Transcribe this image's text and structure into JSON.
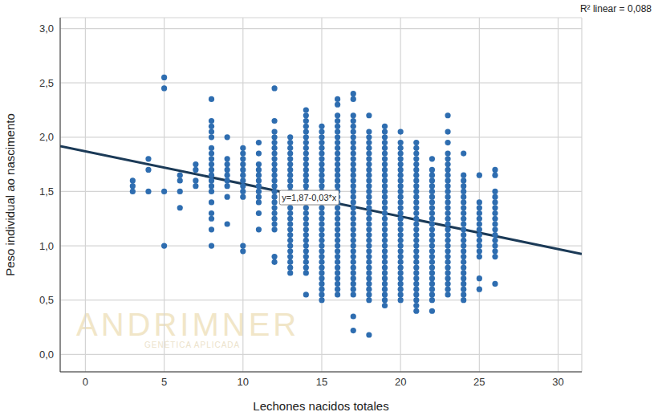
{
  "chart_data": {
    "type": "scatter",
    "x_label": "Lechones nacidos totales",
    "y_label": "Peso individual ao nascimento",
    "annotation": "R² linear = 0,088",
    "watermark": [
      "ANDRIMNER",
      "GENÉTICA APLICADA"
    ],
    "trendline": {
      "intercept": 1.87,
      "slope": -0.03,
      "label": "y=1,87-0,03*x",
      "color": "#1b3a57"
    },
    "color": "#2e6db0",
    "grid": true,
    "marker": "circle",
    "xlim": [
      -1.6,
      31.5
    ],
    "xticks": [
      0,
      5,
      10,
      15,
      20,
      25,
      30
    ],
    "ylim": [
      -0.16,
      3.1
    ],
    "yticks": [
      {
        "value": 0,
        "label": "0,0"
      },
      {
        "value": 0.5,
        "label": "0,5"
      },
      {
        "value": 1,
        "label": "1,0"
      },
      {
        "value": 1.5,
        "label": "1,5"
      },
      {
        "value": 2,
        "label": "2,0"
      },
      {
        "value": 2.5,
        "label": "2,5"
      },
      {
        "value": 3,
        "label": "3,0"
      }
    ],
    "x": [
      3,
      4,
      5,
      6,
      7,
      8,
      9,
      10,
      11,
      12,
      13,
      14,
      15,
      16,
      17,
      18,
      19,
      20,
      21,
      22,
      23,
      24,
      25,
      26
    ],
    "values": [
      [
        1.6,
        1.55,
        1.5
      ],
      [
        1.8,
        1.7,
        1.5
      ],
      [
        2.55,
        2.45,
        1.5,
        1.0
      ],
      [
        1.65,
        1.6,
        1.5,
        1.35
      ],
      [
        1.75,
        1.7,
        1.6,
        1.55
      ],
      [
        2.35,
        2.15,
        2.1,
        2.05,
        2.0,
        1.9,
        1.85,
        1.8,
        1.75,
        1.7,
        1.65,
        1.6,
        1.55,
        1.5,
        1.4,
        1.3,
        1.25,
        1.15,
        1.0
      ],
      [
        2.0,
        1.8,
        1.75,
        1.7,
        1.65,
        1.6,
        1.55,
        1.45,
        1.2
      ],
      [
        1.9,
        1.85,
        1.8,
        1.75,
        1.7,
        1.65,
        1.6,
        1.55,
        1.5,
        1.45,
        1.0,
        0.95
      ],
      [
        1.95,
        1.85,
        1.75,
        1.7,
        1.65,
        1.6,
        1.55,
        1.5,
        1.45,
        1.4,
        1.3,
        1.15
      ],
      [
        2.45,
        2.15,
        2.05,
        2.0,
        1.95,
        1.9,
        1.85,
        1.8,
        1.75,
        1.7,
        1.65,
        1.6,
        1.55,
        1.5,
        1.45,
        1.4,
        1.35,
        1.3,
        1.25,
        1.2,
        1.15,
        0.9,
        0.85
      ],
      [
        2.0,
        1.95,
        1.9,
        1.85,
        1.8,
        1.75,
        1.7,
        1.65,
        1.6,
        1.55,
        1.5,
        1.45,
        1.4,
        1.35,
        1.3,
        1.25,
        1.2,
        1.15,
        1.1,
        1.05,
        1.0,
        0.95,
        0.9,
        0.85,
        0.8,
        0.75
      ],
      [
        2.25,
        2.2,
        2.15,
        2.1,
        2.05,
        2.0,
        1.95,
        1.9,
        1.85,
        1.8,
        1.75,
        1.7,
        1.65,
        1.6,
        1.55,
        1.5,
        1.45,
        1.4,
        1.35,
        1.3,
        1.25,
        1.2,
        1.15,
        1.1,
        1.05,
        1.0,
        0.95,
        0.9,
        0.85,
        0.8,
        0.75,
        0.55
      ],
      [
        2.1,
        2.05,
        2.0,
        1.95,
        1.9,
        1.85,
        1.8,
        1.75,
        1.7,
        1.65,
        1.6,
        1.55,
        1.5,
        1.45,
        1.4,
        1.35,
        1.3,
        1.25,
        1.2,
        1.15,
        1.1,
        1.05,
        1.0,
        0.95,
        0.9,
        0.85,
        0.8,
        0.75,
        0.7,
        0.65,
        0.6,
        0.55,
        0.5
      ],
      [
        2.35,
        2.3,
        2.2,
        2.15,
        2.1,
        2.05,
        2.0,
        1.95,
        1.9,
        1.85,
        1.8,
        1.75,
        1.7,
        1.65,
        1.6,
        1.55,
        1.5,
        1.45,
        1.4,
        1.35,
        1.3,
        1.25,
        1.2,
        1.15,
        1.1,
        1.05,
        1.0,
        0.95,
        0.9,
        0.85,
        0.8,
        0.75,
        0.7,
        0.65,
        0.6,
        0.55
      ],
      [
        2.4,
        2.35,
        2.2,
        2.15,
        2.1,
        2.05,
        2.0,
        1.95,
        1.9,
        1.85,
        1.8,
        1.75,
        1.7,
        1.65,
        1.6,
        1.55,
        1.5,
        1.45,
        1.4,
        1.35,
        1.3,
        1.25,
        1.2,
        1.15,
        1.1,
        1.05,
        1.0,
        0.95,
        0.9,
        0.85,
        0.8,
        0.75,
        0.7,
        0.65,
        0.6,
        0.55,
        0.35,
        0.22
      ],
      [
        2.2,
        2.05,
        2.0,
        1.95,
        1.9,
        1.85,
        1.8,
        1.75,
        1.7,
        1.65,
        1.6,
        1.55,
        1.5,
        1.45,
        1.4,
        1.35,
        1.3,
        1.25,
        1.2,
        1.15,
        1.1,
        1.05,
        1.0,
        0.95,
        0.9,
        0.85,
        0.8,
        0.75,
        0.7,
        0.65,
        0.6,
        0.55,
        0.5,
        0.18
      ],
      [
        2.1,
        2.05,
        2.0,
        1.95,
        1.9,
        1.85,
        1.8,
        1.75,
        1.7,
        1.65,
        1.6,
        1.55,
        1.5,
        1.45,
        1.4,
        1.35,
        1.3,
        1.25,
        1.2,
        1.15,
        1.1,
        1.05,
        1.0,
        0.95,
        0.9,
        0.85,
        0.8,
        0.75,
        0.7,
        0.65,
        0.6,
        0.55,
        0.5,
        0.45
      ],
      [
        2.05,
        1.95,
        1.9,
        1.85,
        1.8,
        1.75,
        1.7,
        1.65,
        1.6,
        1.55,
        1.5,
        1.45,
        1.4,
        1.35,
        1.3,
        1.25,
        1.2,
        1.15,
        1.1,
        1.05,
        1.0,
        0.95,
        0.9,
        0.85,
        0.8,
        0.75,
        0.7,
        0.65,
        0.6,
        0.55,
        0.5
      ],
      [
        1.95,
        1.9,
        1.85,
        1.8,
        1.75,
        1.7,
        1.65,
        1.6,
        1.55,
        1.5,
        1.45,
        1.4,
        1.35,
        1.3,
        1.25,
        1.2,
        1.15,
        1.1,
        1.05,
        1.0,
        0.95,
        0.9,
        0.85,
        0.8,
        0.75,
        0.7,
        0.65,
        0.6,
        0.55,
        0.5,
        0.45,
        0.4
      ],
      [
        1.8,
        1.7,
        1.65,
        1.6,
        1.55,
        1.5,
        1.45,
        1.4,
        1.35,
        1.3,
        1.25,
        1.2,
        1.15,
        1.1,
        1.05,
        1.0,
        0.95,
        0.9,
        0.85,
        0.8,
        0.75,
        0.7,
        0.65,
        0.6,
        0.55,
        0.5,
        0.4
      ],
      [
        2.2,
        2.05,
        1.95,
        1.85,
        1.8,
        1.75,
        1.7,
        1.65,
        1.6,
        1.55,
        1.5,
        1.45,
        1.4,
        1.35,
        1.3,
        1.25,
        1.2,
        1.15,
        1.1,
        1.05,
        1.0,
        0.95,
        0.9,
        0.85,
        0.8,
        0.75,
        0.7,
        0.65,
        0.6,
        0.55
      ],
      [
        1.85,
        1.65,
        1.6,
        1.55,
        1.5,
        1.45,
        1.4,
        1.35,
        1.3,
        1.25,
        1.2,
        1.15,
        1.1,
        1.05,
        1.0,
        0.95,
        0.9,
        0.85,
        0.8,
        0.75,
        0.7,
        0.65,
        0.6,
        0.55,
        0.5
      ],
      [
        1.65,
        1.4,
        1.35,
        1.3,
        1.25,
        1.2,
        1.15,
        1.1,
        1.05,
        1.0,
        0.95,
        0.9,
        0.7,
        0.6
      ],
      [
        1.7,
        1.65,
        1.5,
        1.45,
        1.4,
        1.35,
        1.3,
        1.25,
        1.2,
        1.15,
        1.1,
        1.05,
        1.0,
        0.95,
        0.9,
        0.65
      ]
    ]
  }
}
